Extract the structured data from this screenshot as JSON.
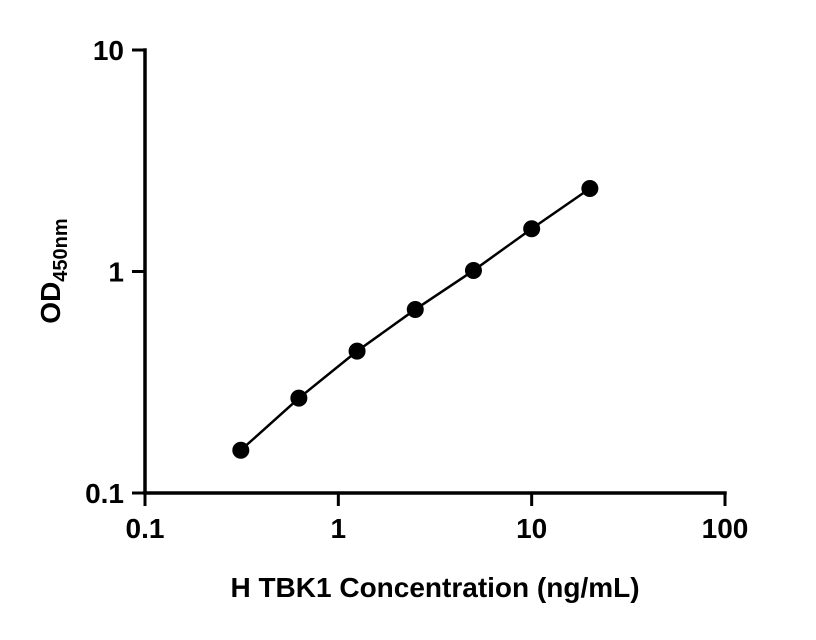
{
  "chart_data": {
    "type": "scatter",
    "title": "",
    "xlabel": "H TBK1 Concentration (ng/mL)",
    "ylabel": "OD",
    "ylabel_subscript": "450nm",
    "x": [
      0.313,
      0.625,
      1.25,
      2.5,
      5,
      10,
      20
    ],
    "y": [
      0.156,
      0.268,
      0.437,
      0.674,
      1.01,
      1.56,
      2.37
    ],
    "x_scale": "log",
    "y_scale": "log",
    "xlim": [
      0.1,
      100
    ],
    "ylim": [
      0.1,
      10
    ],
    "x_ticks": [
      0.1,
      1,
      10,
      100
    ],
    "x_tick_labels": [
      "0.1",
      "1",
      "10",
      "100"
    ],
    "y_ticks": [
      0.1,
      1,
      10
    ],
    "y_tick_labels": [
      "0.1",
      "1",
      "10"
    ],
    "grid": false,
    "legend": null,
    "line_color": "#000000",
    "marker_color": "#000000",
    "background_color": "#ffffff"
  }
}
